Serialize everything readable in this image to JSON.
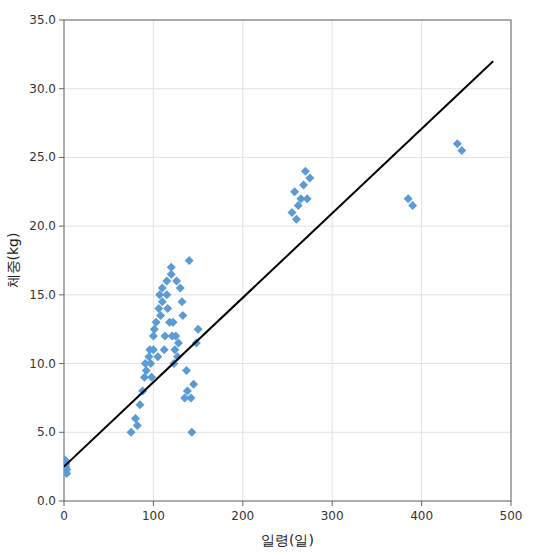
{
  "chart_data": {
    "type": "scatter",
    "xlabel": "일령(일)",
    "ylabel": "체중(kg)",
    "xlim": [
      0,
      500
    ],
    "ylim": [
      0,
      35
    ],
    "xticks": [
      0,
      100,
      200,
      300,
      400,
      500
    ],
    "yticks": [
      {
        "value": 0.0,
        "label": "0.0"
      },
      {
        "value": 5.0,
        "label": "5.0"
      },
      {
        "value": 10.0,
        "label": "10.0"
      },
      {
        "value": 15.0,
        "label": "15.0"
      },
      {
        "value": 20.0,
        "label": "20.0"
      },
      {
        "value": 25.0,
        "label": "25.0"
      },
      {
        "value": 30.0,
        "label": "30.0"
      },
      {
        "value": 35.0,
        "label": "35.0"
      }
    ],
    "grid": true,
    "series": [
      {
        "type": "scatter",
        "color": "#5B9BD5",
        "marker": "diamond",
        "x": [
          1,
          1,
          1,
          2,
          2,
          2,
          3,
          3,
          75,
          80,
          82,
          85,
          88,
          90,
          91,
          92,
          95,
          96,
          97,
          98,
          100,
          100,
          101,
          103,
          105,
          106,
          107,
          108,
          110,
          110,
          112,
          113,
          115,
          115,
          116,
          118,
          120,
          120,
          121,
          122,
          123,
          124,
          125,
          126,
          127,
          128,
          130,
          132,
          133,
          135,
          137,
          138,
          140,
          142,
          143,
          145,
          148,
          150,
          255,
          258,
          260,
          262,
          265,
          268,
          270,
          272,
          275,
          385,
          390,
          440,
          445
        ],
        "values": [
          2.5,
          2.8,
          3.0,
          2.2,
          2.5,
          2.7,
          2.0,
          2.3,
          5.0,
          6.0,
          5.5,
          7.0,
          8.0,
          9.0,
          10.0,
          9.5,
          10.5,
          11.0,
          10.0,
          9.0,
          12.0,
          11.0,
          12.5,
          13.0,
          10.5,
          14.0,
          15.0,
          13.5,
          14.5,
          15.5,
          11.0,
          12.0,
          16.0,
          15.0,
          14.0,
          13.0,
          16.5,
          17.0,
          12.0,
          13.0,
          10.0,
          11.0,
          12.0,
          16.0,
          10.5,
          11.5,
          15.5,
          14.5,
          13.5,
          7.5,
          9.5,
          8.0,
          17.5,
          7.5,
          5.0,
          8.5,
          11.5,
          12.5,
          21.0,
          22.5,
          20.5,
          21.5,
          22.0,
          23.0,
          24.0,
          22.0,
          23.5,
          22.0,
          21.5,
          26.0,
          25.5
        ]
      },
      {
        "type": "line",
        "color": "#000000",
        "x": [
          0,
          480
        ],
        "values": [
          2.5,
          32.0
        ]
      }
    ]
  }
}
